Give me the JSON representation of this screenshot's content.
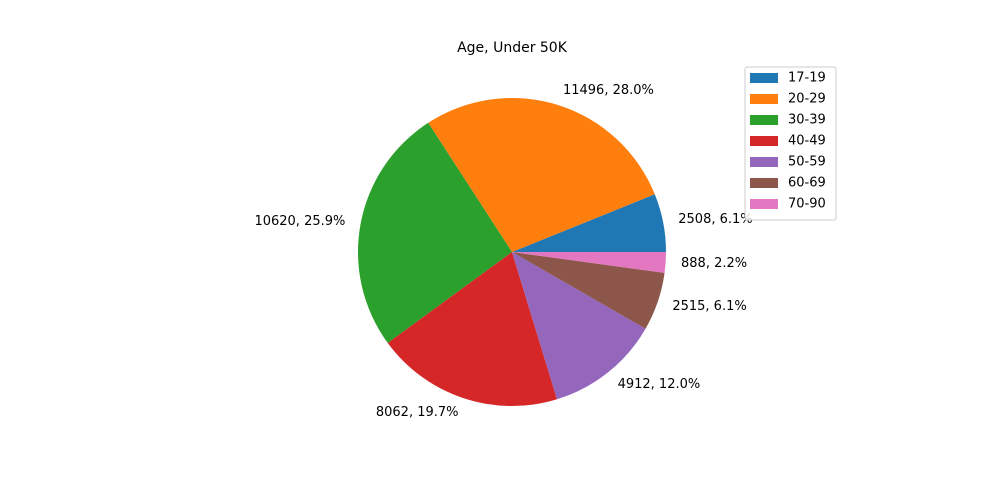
{
  "chart_data": {
    "type": "pie",
    "title": "Age, Under 50K",
    "categories": [
      "17-19",
      "20-29",
      "30-39",
      "40-49",
      "50-59",
      "60-69",
      "70-90"
    ],
    "values": [
      2508,
      11496,
      10620,
      8062,
      4912,
      2515,
      888
    ],
    "slice_labels": [
      "2508, 6.1%",
      "11496, 28.0%",
      "10620, 25.9%",
      "8062, 19.7%",
      "4912, 12.0%",
      "2515, 6.1%",
      "888, 2.2%"
    ],
    "colors": [
      "#1f77b4",
      "#ff7f0e",
      "#2ca02c",
      "#d62728",
      "#9467bd",
      "#8c564b",
      "#e377c2"
    ],
    "start_angle_degrees": 0,
    "direction": "counterclockwise",
    "legend": {
      "placement": "top-right",
      "entries": [
        "17-19",
        "20-29",
        "30-39",
        "40-49",
        "50-59",
        "60-69",
        "70-90"
      ]
    }
  }
}
